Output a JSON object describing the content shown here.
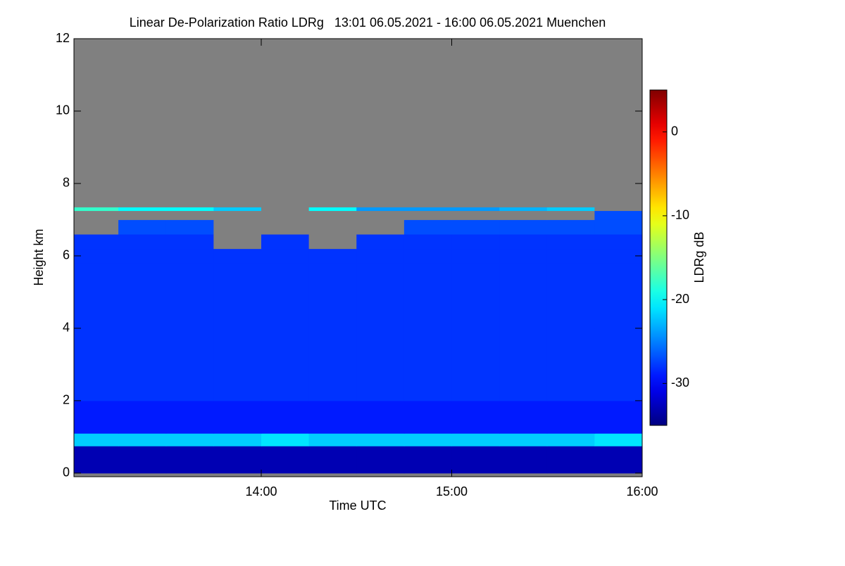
{
  "chart_data": {
    "type": "heatmap",
    "title": "Linear De-Polarization Ratio LDRg   13:01 06.05.2021 - 16:00 06.05.2021 Muenchen",
    "x_label": "Time UTC",
    "y_label": "Height km",
    "colorbar_label": "LDRg dB",
    "xlim": [
      13.0167,
      16.0
    ],
    "xticks": [
      {
        "value": 14,
        "label": "14:00"
      },
      {
        "value": 15,
        "label": "15:00"
      },
      {
        "value": 16,
        "label": "16:00"
      }
    ],
    "ylim": [
      -0.1,
      12
    ],
    "yticks": [
      0,
      2,
      4,
      6,
      8,
      10,
      12
    ],
    "clim": [
      -35,
      5
    ],
    "cticks": [
      0,
      -10,
      -20,
      -30
    ],
    "colormap": "jet",
    "missing_color": "#808080",
    "x_edges": [
      13.0167,
      13.25,
      13.5,
      13.75,
      14.0,
      14.25,
      14.5,
      14.75,
      15.0,
      15.25,
      15.5,
      15.75,
      16.0
    ],
    "y_edges": [
      0,
      0.75,
      1.1,
      2,
      4,
      5.8,
      6.2,
      6.6,
      7.0,
      7.25,
      7.35,
      12
    ],
    "z": [
      [
        -33,
        -33,
        -33,
        -33,
        -33,
        -33,
        -33,
        -33,
        -33,
        -33,
        -33,
        -33
      ],
      [
        -22,
        -22,
        -22,
        -22,
        -21,
        -22,
        -22,
        -22,
        -22,
        -22,
        -22,
        -21
      ],
      [
        -29,
        -29,
        -29,
        -29,
        -29,
        -29,
        -29,
        -29,
        -29,
        -29,
        -29,
        -29
      ],
      [
        -28,
        -28,
        -28,
        -28,
        -28,
        -28,
        -28,
        -28,
        -28,
        -28,
        -28,
        -28
      ],
      [
        -28,
        -28,
        -28,
        -28,
        -28,
        -28,
        -28,
        -28,
        -28,
        -28,
        -28,
        -28
      ],
      [
        -28,
        -28,
        -28,
        -28,
        -28,
        -28,
        -28,
        -28,
        -28,
        -28,
        -28,
        -28
      ],
      [
        -28,
        -28,
        -28,
        null,
        -28,
        null,
        -28,
        -28,
        -28,
        -28,
        -28,
        -28
      ],
      [
        null,
        -27,
        -27,
        null,
        null,
        null,
        null,
        -27,
        -27,
        -27,
        -27,
        -27
      ],
      [
        null,
        null,
        null,
        null,
        null,
        null,
        null,
        null,
        null,
        null,
        null,
        -27
      ],
      [
        -18,
        -20,
        -20,
        -22,
        null,
        -20,
        -24,
        -24,
        -24,
        -23,
        -22,
        null
      ],
      [
        null,
        null,
        null,
        null,
        null,
        null,
        null,
        null,
        null,
        null,
        null,
        null
      ]
    ]
  }
}
